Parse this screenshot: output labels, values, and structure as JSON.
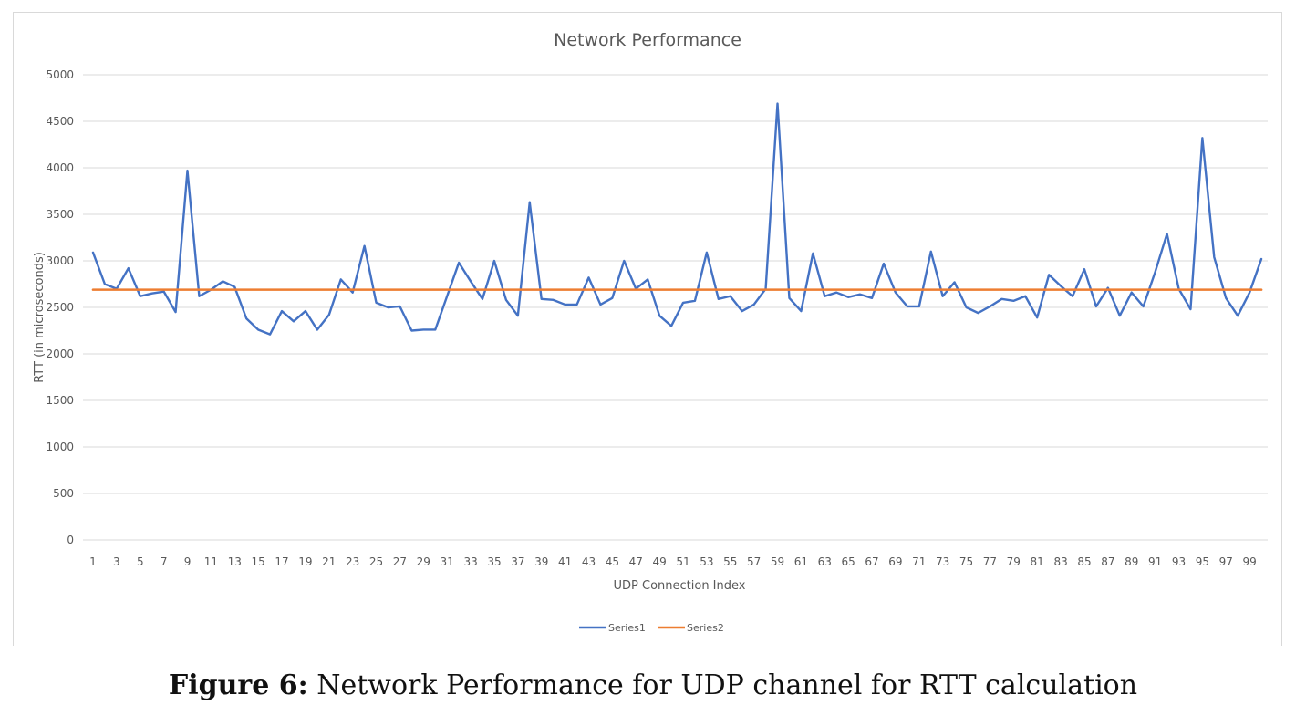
{
  "chart_data": {
    "type": "line",
    "title": "Network Performance",
    "xlabel": "UDP Connection Index",
    "ylabel": "RTT (in microseconds)",
    "ylim": [
      0,
      5000
    ],
    "yticks": [
      0,
      500,
      1000,
      1500,
      2000,
      2500,
      3000,
      3500,
      4000,
      4500,
      5000
    ],
    "x": [
      1,
      2,
      3,
      4,
      5,
      6,
      7,
      8,
      9,
      10,
      11,
      12,
      13,
      14,
      15,
      16,
      17,
      18,
      19,
      20,
      21,
      22,
      23,
      24,
      25,
      26,
      27,
      28,
      29,
      30,
      31,
      32,
      33,
      34,
      35,
      36,
      37,
      38,
      39,
      40,
      41,
      42,
      43,
      44,
      45,
      46,
      47,
      48,
      49,
      50,
      51,
      52,
      53,
      54,
      55,
      56,
      57,
      58,
      59,
      60,
      61,
      62,
      63,
      64,
      65,
      66,
      67,
      68,
      69,
      70,
      71,
      72,
      73,
      74,
      75,
      76,
      77,
      78,
      79,
      80,
      81,
      82,
      83,
      84,
      85,
      86,
      87,
      88,
      89,
      90,
      91,
      92,
      93,
      94,
      95,
      96,
      97,
      98,
      99,
      100
    ],
    "xtick_labels": [
      "1",
      "3",
      "5",
      "7",
      "9",
      "11",
      "13",
      "15",
      "17",
      "19",
      "21",
      "23",
      "25",
      "27",
      "29",
      "31",
      "33",
      "35",
      "37",
      "39",
      "41",
      "43",
      "45",
      "47",
      "49",
      "51",
      "53",
      "55",
      "57",
      "59",
      "61",
      "63",
      "65",
      "67",
      "69",
      "71",
      "73",
      "75",
      "77",
      "79",
      "81",
      "83",
      "85",
      "87",
      "89",
      "91",
      "93",
      "95",
      "97",
      "99"
    ],
    "series": [
      {
        "name": "Series1",
        "color": "#4472C4",
        "values": [
          3090,
          2750,
          2700,
          2920,
          2620,
          2650,
          2670,
          2450,
          3970,
          2620,
          2690,
          2780,
          2720,
          2380,
          2260,
          2210,
          2460,
          2350,
          2460,
          2260,
          2420,
          2800,
          2660,
          3160,
          2550,
          2500,
          2510,
          2250,
          2260,
          2260,
          2620,
          2980,
          2780,
          2590,
          3000,
          2580,
          2410,
          3630,
          2590,
          2580,
          2530,
          2530,
          2820,
          2530,
          2600,
          3000,
          2700,
          2800,
          2410,
          2300,
          2550,
          2570,
          3090,
          2590,
          2620,
          2460,
          2530,
          2700,
          4690,
          2600,
          2460,
          3080,
          2620,
          2660,
          2610,
          2640,
          2600,
          2970,
          2660,
          2510,
          2510,
          3100,
          2620,
          2770,
          2500,
          2440,
          2510,
          2590,
          2570,
          2620,
          2390,
          2850,
          2730,
          2620,
          2910,
          2510,
          2710,
          2410,
          2660,
          2510,
          2880,
          3290,
          2700,
          2480,
          4320,
          3040,
          2600,
          2410,
          2660,
          3020
        ]
      },
      {
        "name": "Series2",
        "color": "#ED7D31",
        "values": [
          2690,
          2690,
          2690,
          2690,
          2690,
          2690,
          2690,
          2690,
          2690,
          2690,
          2690,
          2690,
          2690,
          2690,
          2690,
          2690,
          2690,
          2690,
          2690,
          2690,
          2690,
          2690,
          2690,
          2690,
          2690,
          2690,
          2690,
          2690,
          2690,
          2690,
          2690,
          2690,
          2690,
          2690,
          2690,
          2690,
          2690,
          2690,
          2690,
          2690,
          2690,
          2690,
          2690,
          2690,
          2690,
          2690,
          2690,
          2690,
          2690,
          2690,
          2690,
          2690,
          2690,
          2690,
          2690,
          2690,
          2690,
          2690,
          2690,
          2690,
          2690,
          2690,
          2690,
          2690,
          2690,
          2690,
          2690,
          2690,
          2690,
          2690,
          2690,
          2690,
          2690,
          2690,
          2690,
          2690,
          2690,
          2690,
          2690,
          2690,
          2690,
          2690,
          2690,
          2690,
          2690,
          2690,
          2690,
          2690,
          2690,
          2690,
          2690,
          2690,
          2690,
          2690,
          2690,
          2690,
          2690,
          2690,
          2690,
          2690
        ]
      }
    ],
    "grid": true,
    "legend_position": "bottom"
  },
  "caption": {
    "label": "Figure 6:",
    "text": " Network Performance for UDP channel for RTT calculation"
  },
  "colors": {
    "gridline": "#d9d9d9",
    "text": "#595959"
  }
}
